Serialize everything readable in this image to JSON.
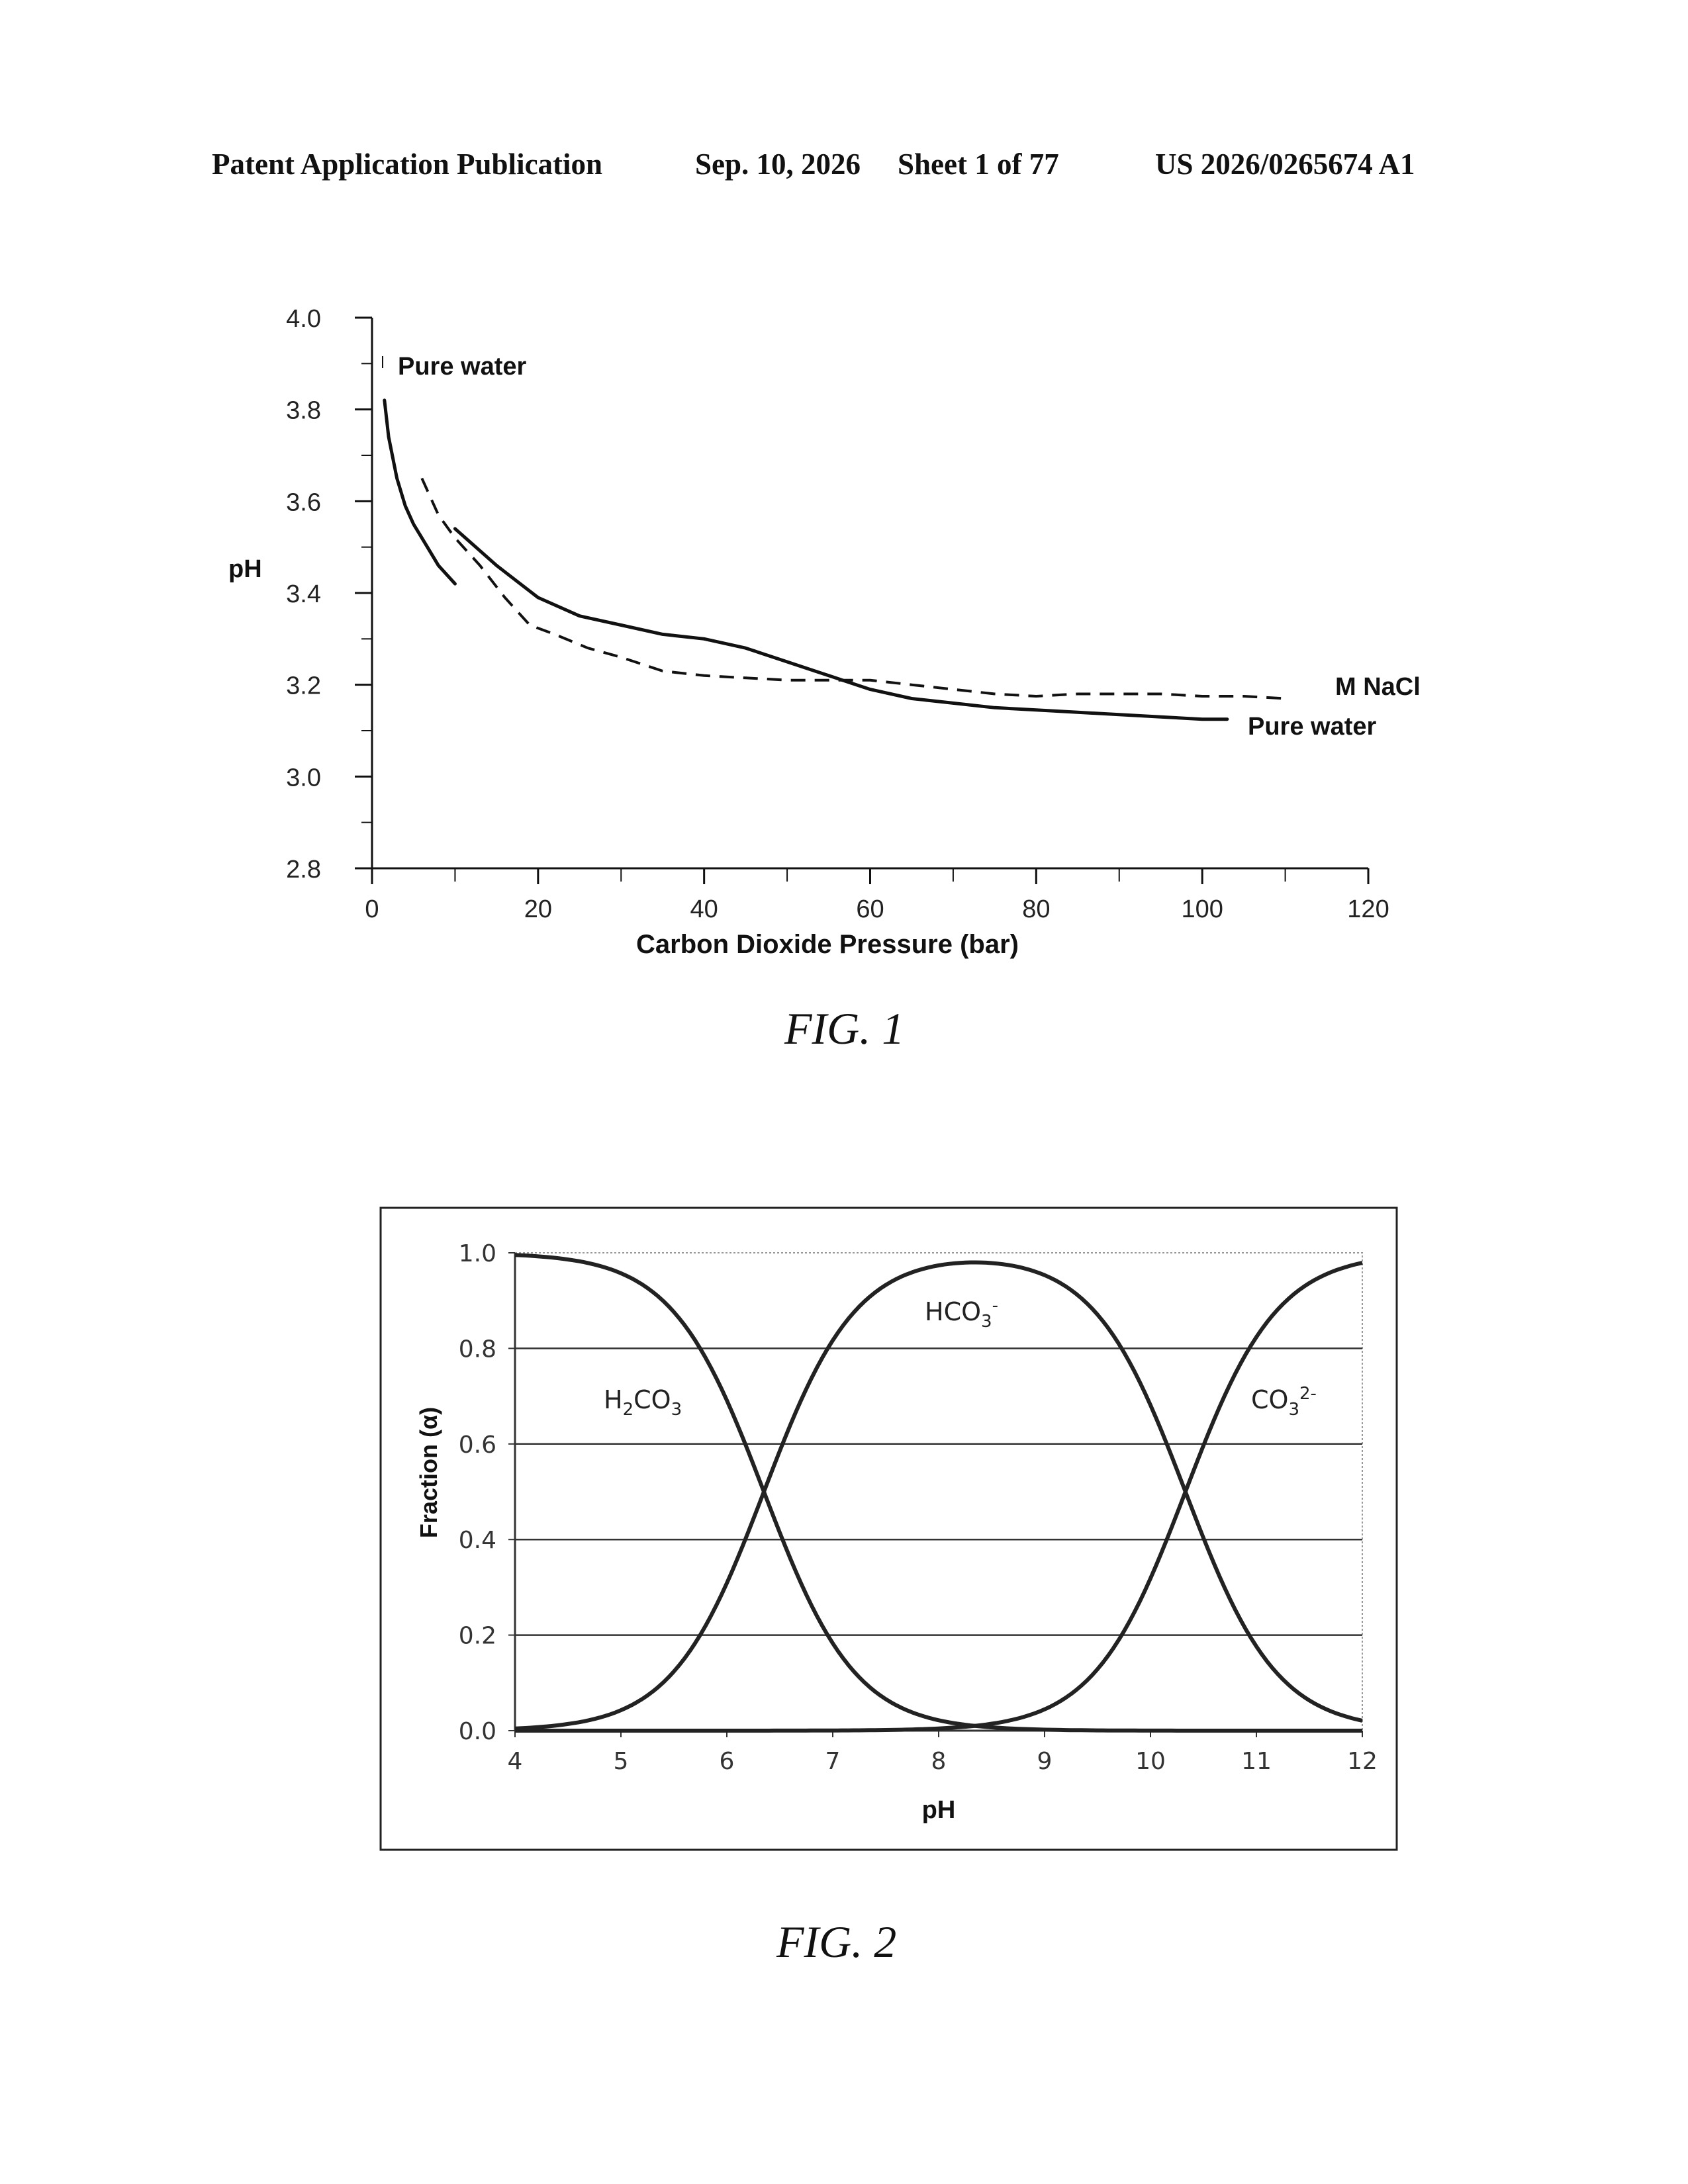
{
  "header": {
    "publication": "Patent Application Publication",
    "date": "Sep. 10, 2026",
    "sheet": "Sheet 1 of 77",
    "number": "US 2026/0265674 A1"
  },
  "figures": [
    {
      "caption": "FIG. 1"
    },
    {
      "caption": "FIG. 2"
    }
  ],
  "chart_data": [
    {
      "type": "line",
      "xlabel": "Carbon Dioxide Pressure (bar)",
      "ylabel": "pH",
      "xlim": [
        0,
        120
      ],
      "ylim": [
        2.8,
        4.0
      ],
      "x_ticks": [
        "0",
        "20",
        "40",
        "60",
        "80",
        "100",
        "120"
      ],
      "y_ticks": [
        "4.0",
        "3.8",
        "3.6",
        "3.4",
        "3.2",
        "3.0",
        "2.8"
      ],
      "grid": false,
      "annotations": [
        {
          "text": "Pure water"
        },
        {
          "text": "M NaCl"
        },
        {
          "text": "Pure water"
        }
      ],
      "series": [
        {
          "style": "solid",
          "x": [
            1.5,
            2,
            3,
            4,
            5,
            6,
            7,
            8,
            9,
            10
          ],
          "y": [
            3.82,
            3.74,
            3.65,
            3.59,
            3.55,
            3.52,
            3.49,
            3.46,
            3.44,
            3.42
          ]
        },
        {
          "style": "solid",
          "x": [
            10,
            15,
            20,
            25,
            30,
            35,
            40,
            45,
            50,
            55,
            60,
            65,
            70,
            75,
            80,
            85,
            90,
            95,
            100,
            103
          ],
          "y": [
            3.54,
            3.46,
            3.39,
            3.35,
            3.33,
            3.31,
            3.3,
            3.28,
            3.25,
            3.22,
            3.19,
            3.17,
            3.16,
            3.15,
            3.145,
            3.14,
            3.135,
            3.13,
            3.125,
            3.125
          ]
        },
        {
          "style": "dashed",
          "x": [
            6,
            8,
            10,
            13,
            16,
            19,
            22,
            26,
            30,
            35,
            40,
            45,
            50,
            55,
            60,
            65,
            70,
            75,
            80,
            85,
            90,
            95,
            100,
            105,
            110
          ],
          "y": [
            3.65,
            3.57,
            3.52,
            3.46,
            3.39,
            3.33,
            3.31,
            3.28,
            3.26,
            3.23,
            3.22,
            3.215,
            3.21,
            3.21,
            3.21,
            3.2,
            3.19,
            3.18,
            3.175,
            3.18,
            3.18,
            3.18,
            3.175,
            3.175,
            3.17
          ]
        }
      ]
    },
    {
      "type": "line",
      "xlabel": "pH",
      "ylabel": "Fraction (α)",
      "xlim": [
        4,
        12
      ],
      "ylim": [
        0.0,
        1.0
      ],
      "x_ticks": [
        "4",
        "5",
        "6",
        "7",
        "8",
        "9",
        "10",
        "11",
        "12"
      ],
      "y_ticks": [
        "1.0",
        "0.8",
        "0.6",
        "0.4",
        "0.2",
        "0.0"
      ],
      "grid": true,
      "pKa": [
        6.35,
        10.33
      ],
      "series": [
        {
          "name": "H₂CO₃"
        },
        {
          "name": "HCO₃⁻"
        },
        {
          "name": "CO₃²⁻"
        }
      ],
      "series_labels": {
        "h2co3": {
          "base": "H",
          "sub1": "2",
          "mid": "CO",
          "sub2": "3"
        },
        "hco3": {
          "base": "HCO",
          "sub": "3",
          "sup": "-"
        },
        "co3": {
          "base": "CO",
          "sub": "3",
          "sup": "2-"
        }
      }
    }
  ]
}
